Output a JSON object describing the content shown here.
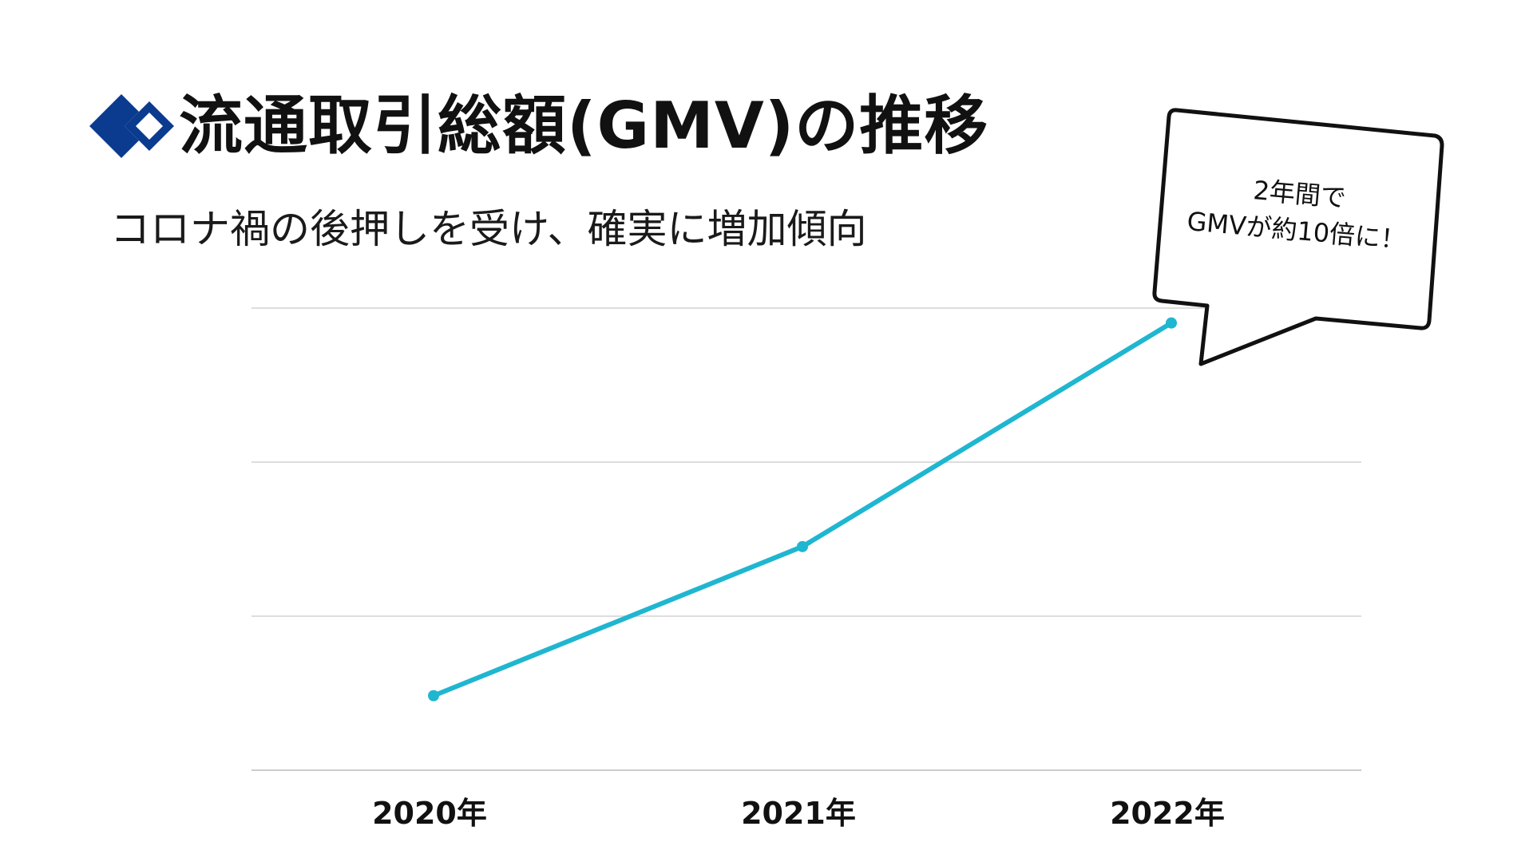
{
  "header": {
    "logo_icon": "diamond-logo-icon",
    "title": "流通取引総額(GMV)の推移",
    "subtitle": "コロナ禍の後押しを受け、確実に増加傾向"
  },
  "callout": {
    "line1": "2年間で",
    "line2": "GMVが約10倍に！"
  },
  "colors": {
    "line": "#1fb6d0",
    "brand": "#0b3b8f",
    "grid": "#dddddd"
  },
  "chart_data": {
    "type": "line",
    "categories": [
      "2020年",
      "2021年",
      "2022年"
    ],
    "series": [
      {
        "values": [
          1,
          3,
          6
        ]
      }
    ],
    "ylim": [
      0,
      6.2
    ],
    "grid": true,
    "gridlines": 4,
    "y_axis_labels_visible": false
  }
}
